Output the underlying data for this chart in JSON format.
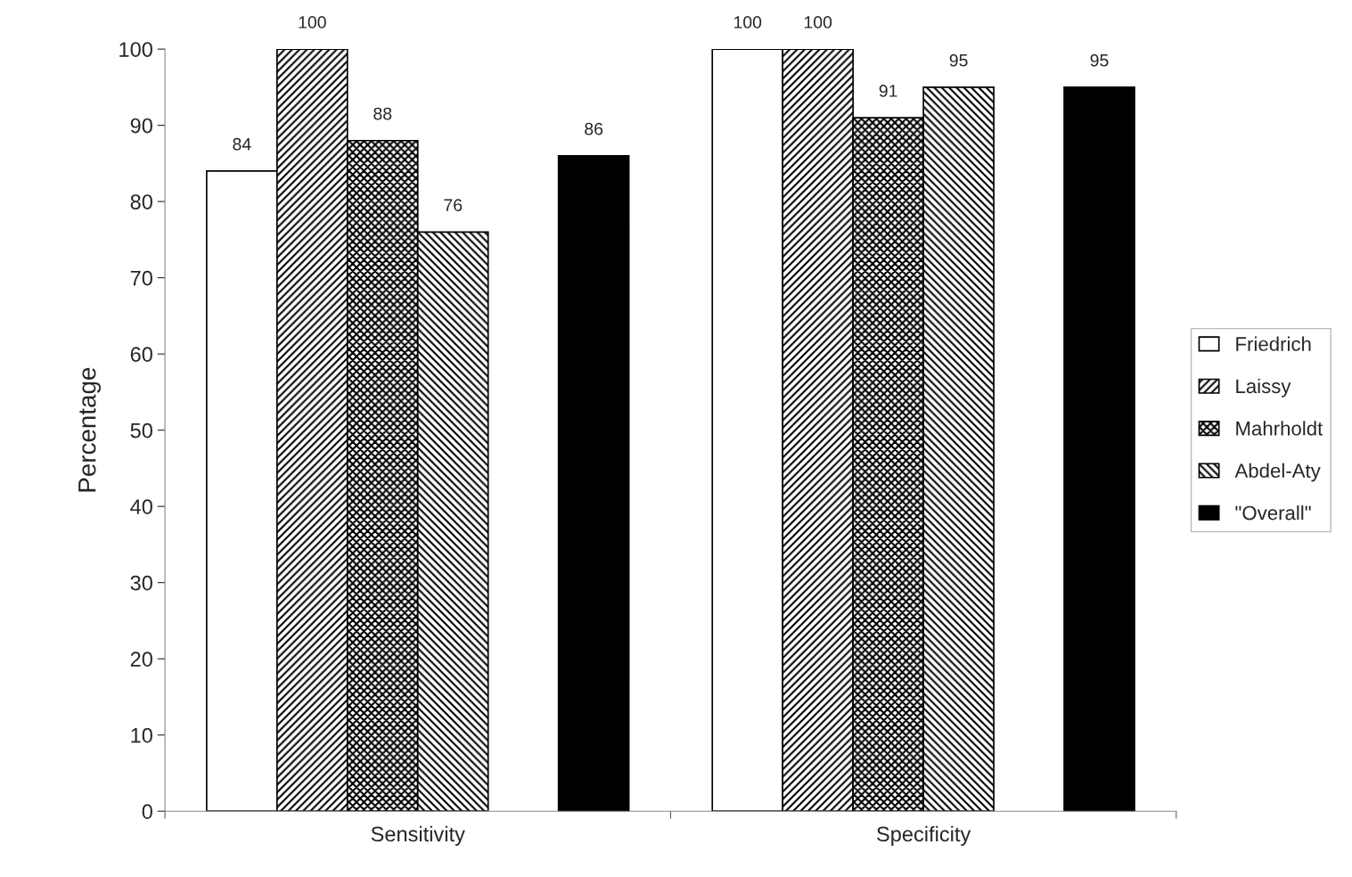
{
  "chart_data": {
    "type": "bar",
    "ylabel": "Percentage",
    "categories": [
      "Sensitivity",
      "Specificity"
    ],
    "series": [
      {
        "name": "Friedrich",
        "color": "#ffffff",
        "values": [
          84,
          100
        ]
      },
      {
        "name": "Laissy",
        "color": "#000000",
        "values": [
          100,
          100
        ]
      },
      {
        "name": "Mahrholdt",
        "color": "#000000",
        "values": [
          88,
          91
        ]
      },
      {
        "name": "Abdel-Aty",
        "color": "#000000",
        "values": [
          76,
          95
        ]
      },
      {
        "name": "\"Overall\"",
        "color": "#000000",
        "values": [
          86,
          95
        ]
      }
    ],
    "ylim": [
      0,
      100
    ],
    "yticks": [
      0,
      10,
      20,
      30,
      40,
      50,
      60,
      70,
      80,
      90,
      100
    ],
    "data_labels": true,
    "legend": "right",
    "grid": false
  }
}
